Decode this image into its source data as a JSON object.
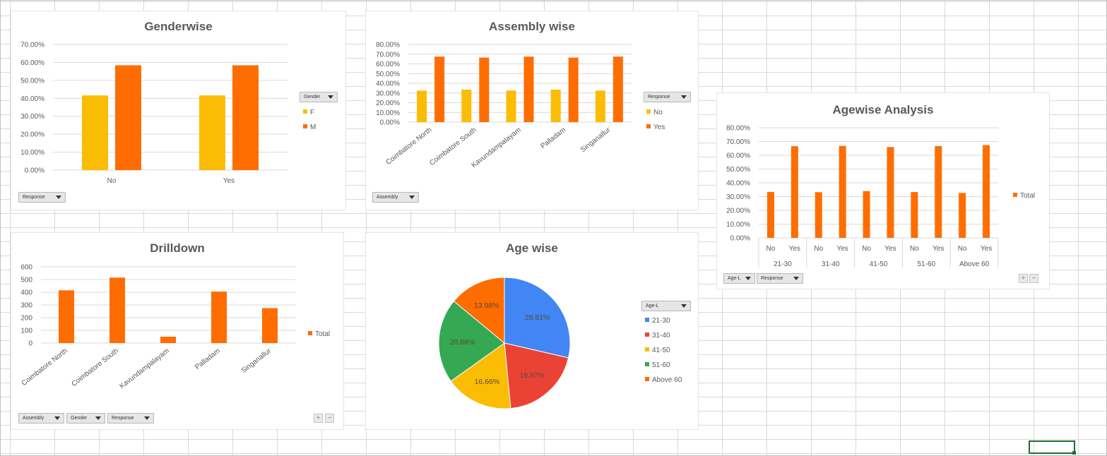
{
  "colors": {
    "orange": "#ff6d01",
    "yellow": "#fbbc04",
    "blue": "#4285f4",
    "red": "#ea4335",
    "green": "#34a853",
    "axis": "#595959",
    "grid": "#d9d9d9"
  },
  "chart_data": [
    {
      "id": "genderwise",
      "type": "bar",
      "title": "Genderwise",
      "categories": [
        "No",
        "Yes"
      ],
      "series": [
        {
          "name": "F",
          "values": [
            41.6,
            41.6
          ],
          "color": "#fbbc04"
        },
        {
          "name": "M",
          "values": [
            58.4,
            58.4
          ],
          "color": "#ff6d01"
        }
      ],
      "ylim": [
        0,
        70
      ],
      "yticks": [
        "0.00%",
        "10.00%",
        "20.00%",
        "30.00%",
        "40.00%",
        "50.00%",
        "60.00%",
        "70.00%"
      ],
      "legend_title": "Gender",
      "legend_placement": "right",
      "filter_buttons": [
        "Response"
      ],
      "grid": true
    },
    {
      "id": "assembly",
      "type": "bar",
      "title": "Assembly wise",
      "categories": [
        "Coimbatore North",
        "Coimbatore South",
        "Kavundampalayam",
        "Palladam",
        "Singanallur"
      ],
      "series": [
        {
          "name": "No",
          "values": [
            32.5,
            33.5,
            32.5,
            33.5,
            32.5
          ],
          "color": "#fbbc04"
        },
        {
          "name": "Yes",
          "values": [
            67.5,
            66.5,
            67.5,
            66.5,
            67.5
          ],
          "color": "#ff6d01"
        }
      ],
      "ylim": [
        0,
        80
      ],
      "yticks": [
        "0.00%",
        "10.00%",
        "20.00%",
        "30.00%",
        "40.00%",
        "50.00%",
        "60.00%",
        "70.00%",
        "80.00%"
      ],
      "legend_title": "Response",
      "legend_placement": "right",
      "filter_buttons": [
        "Assembly"
      ],
      "grid": true
    },
    {
      "id": "agewise",
      "type": "bar",
      "title": "Agewise Analysis",
      "categories": [
        "No",
        "Yes",
        "No",
        "Yes",
        "No",
        "Yes",
        "No",
        "Yes",
        "No",
        "Yes"
      ],
      "groups": [
        "21-30",
        "31-40",
        "41-50",
        "51-60",
        "Above 60"
      ],
      "series": [
        {
          "name": "Total",
          "values": [
            33.4,
            66.6,
            33.2,
            66.8,
            34.0,
            66.0,
            33.3,
            66.7,
            32.6,
            67.4
          ],
          "color": "#ff6d01"
        }
      ],
      "ylim": [
        0,
        80
      ],
      "yticks": [
        "0.00%",
        "10.00%",
        "20.00%",
        "30.00%",
        "40.00%",
        "50.00%",
        "60.00%",
        "70.00%",
        "80.00%"
      ],
      "legend_placement": "right",
      "filter_buttons": [
        "Age-L",
        "Response"
      ],
      "grid": true
    },
    {
      "id": "drilldown",
      "type": "bar",
      "title": "Drilldown",
      "categories": [
        "Coimbatore North",
        "Coimbatore South",
        "Kavundampalayam",
        "Palladam",
        "Singanallur"
      ],
      "series": [
        {
          "name": "Total",
          "values": [
            415,
            515,
            50,
            405,
            275
          ],
          "color": "#ff6d01"
        }
      ],
      "ylim": [
        0,
        600
      ],
      "yticks": [
        "0",
        "100",
        "200",
        "300",
        "400",
        "500",
        "600"
      ],
      "legend_placement": "right",
      "filter_buttons": [
        "Assembly",
        "Gender",
        "Response"
      ],
      "grid": true
    },
    {
      "id": "agepie",
      "type": "pie",
      "title": "Age wise",
      "slices": [
        {
          "label": "21-30",
          "value": 28.61,
          "text": "28.61%",
          "color": "#4285f4"
        },
        {
          "label": "31-40",
          "value": 19.87,
          "text": "19.87%",
          "color": "#ea4335"
        },
        {
          "label": "41-50",
          "value": 16.66,
          "text": "16.66%",
          "color": "#fbbc04"
        },
        {
          "label": "51-60",
          "value": 20.88,
          "text": "20.88%",
          "color": "#34a853"
        },
        {
          "label": "Above 60",
          "value": 13.98,
          "text": "13.98%",
          "color": "#ff6d01"
        }
      ],
      "legend_title": "Age-L",
      "legend_placement": "right"
    }
  ]
}
